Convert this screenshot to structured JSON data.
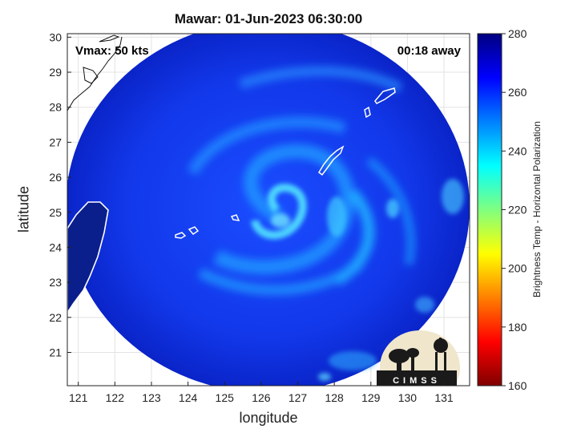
{
  "title": "Mawar: 01-Jun-2023 06:30:00",
  "annotations": {
    "vmax": "Vmax: 50 kts",
    "away": "00:18 away"
  },
  "colorbar": {
    "label": "Brightness Temp - Horizontal Polarization",
    "min": 160,
    "max": 280,
    "ticks": [
      160,
      180,
      200,
      220,
      240,
      260,
      280
    ]
  },
  "logo": {
    "text": "CIMSS"
  },
  "chart_data": {
    "type": "heatmap",
    "title": "Mawar: 01-Jun-2023 06:30:00",
    "xlabel": "longitude",
    "ylabel": "latitude",
    "xlim": [
      120.7,
      131.7
    ],
    "ylim": [
      20.05,
      30.1
    ],
    "xticks": [
      121,
      122,
      123,
      124,
      125,
      126,
      127,
      128,
      129,
      130,
      131
    ],
    "yticks": [
      21,
      22,
      23,
      24,
      25,
      26,
      27,
      28,
      29,
      30
    ],
    "grid": true,
    "storm_center": {
      "lon": 126.3,
      "lat": 24.9
    }
  }
}
